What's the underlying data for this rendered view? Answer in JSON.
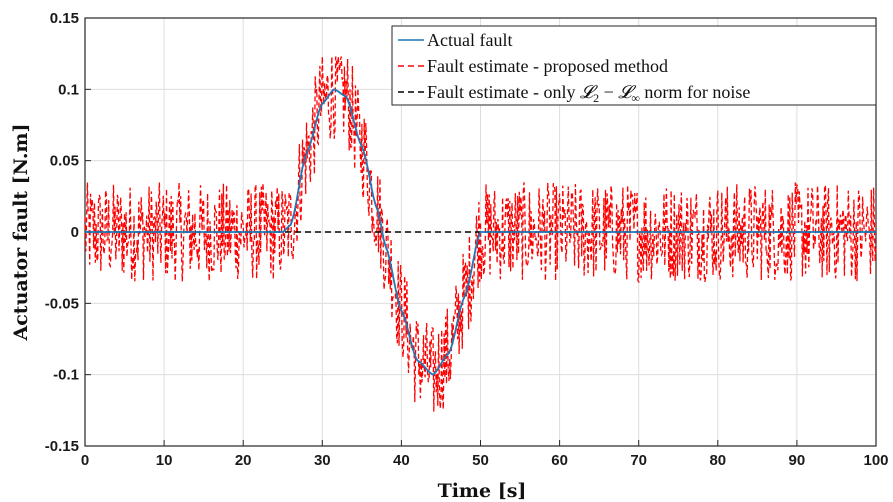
{
  "chart_data": {
    "type": "line",
    "xlabel": "Time [s]",
    "ylabel": "Actuator fault [N.m]",
    "xlim": [
      0,
      100
    ],
    "ylim": [
      -0.15,
      0.15
    ],
    "xticks": [
      0,
      10,
      20,
      30,
      40,
      50,
      60,
      70,
      80,
      90,
      100
    ],
    "yticks": [
      -0.15,
      -0.1,
      -0.05,
      0,
      0.05,
      0.1,
      0.15
    ],
    "xtick_labels": [
      "0",
      "10",
      "20",
      "30",
      "40",
      "50",
      "60",
      "70",
      "80",
      "90",
      "100"
    ],
    "ytick_labels": [
      "-0.15",
      "-0.1",
      "-0.05",
      "0",
      "0.05",
      "0.1",
      "0.15"
    ],
    "grid": true,
    "legend_position": "top-right",
    "series": [
      {
        "name": "Actual fault",
        "color": "#1f77b4",
        "style": "solid",
        "x": [
          0,
          25,
          26,
          28,
          30,
          31.5,
          33,
          35,
          37,
          38,
          40,
          42,
          44,
          46,
          48,
          50,
          100
        ],
        "y": [
          0,
          0,
          0.005,
          0.055,
          0.09,
          0.1,
          0.095,
          0.06,
          0.015,
          -0.01,
          -0.055,
          -0.09,
          -0.1,
          -0.085,
          -0.045,
          0,
          0
        ]
      },
      {
        "name": "Fault estimate - proposed method",
        "color": "#ff0000",
        "style": "dashed",
        "noise_amplitude": 0.035,
        "y_min": -0.13,
        "y_max": 0.123
      },
      {
        "name": "Fault estimate - only L2 − L∞ norm for noise",
        "color": "#000000",
        "style": "dashed",
        "x": [
          0,
          100
        ],
        "y": [
          0,
          0
        ]
      }
    ],
    "legend": {
      "label_1": "Actual fault",
      "label_2": "Fault estimate - proposed method",
      "label_3_prefix": "Fault estimate - only ",
      "label_3_math_L": "𝓛",
      "label_3_sub_2": "2",
      "label_3_minus": " − ",
      "label_3_sub_inf": "∞",
      "label_3_suffix": " norm for noise"
    }
  }
}
